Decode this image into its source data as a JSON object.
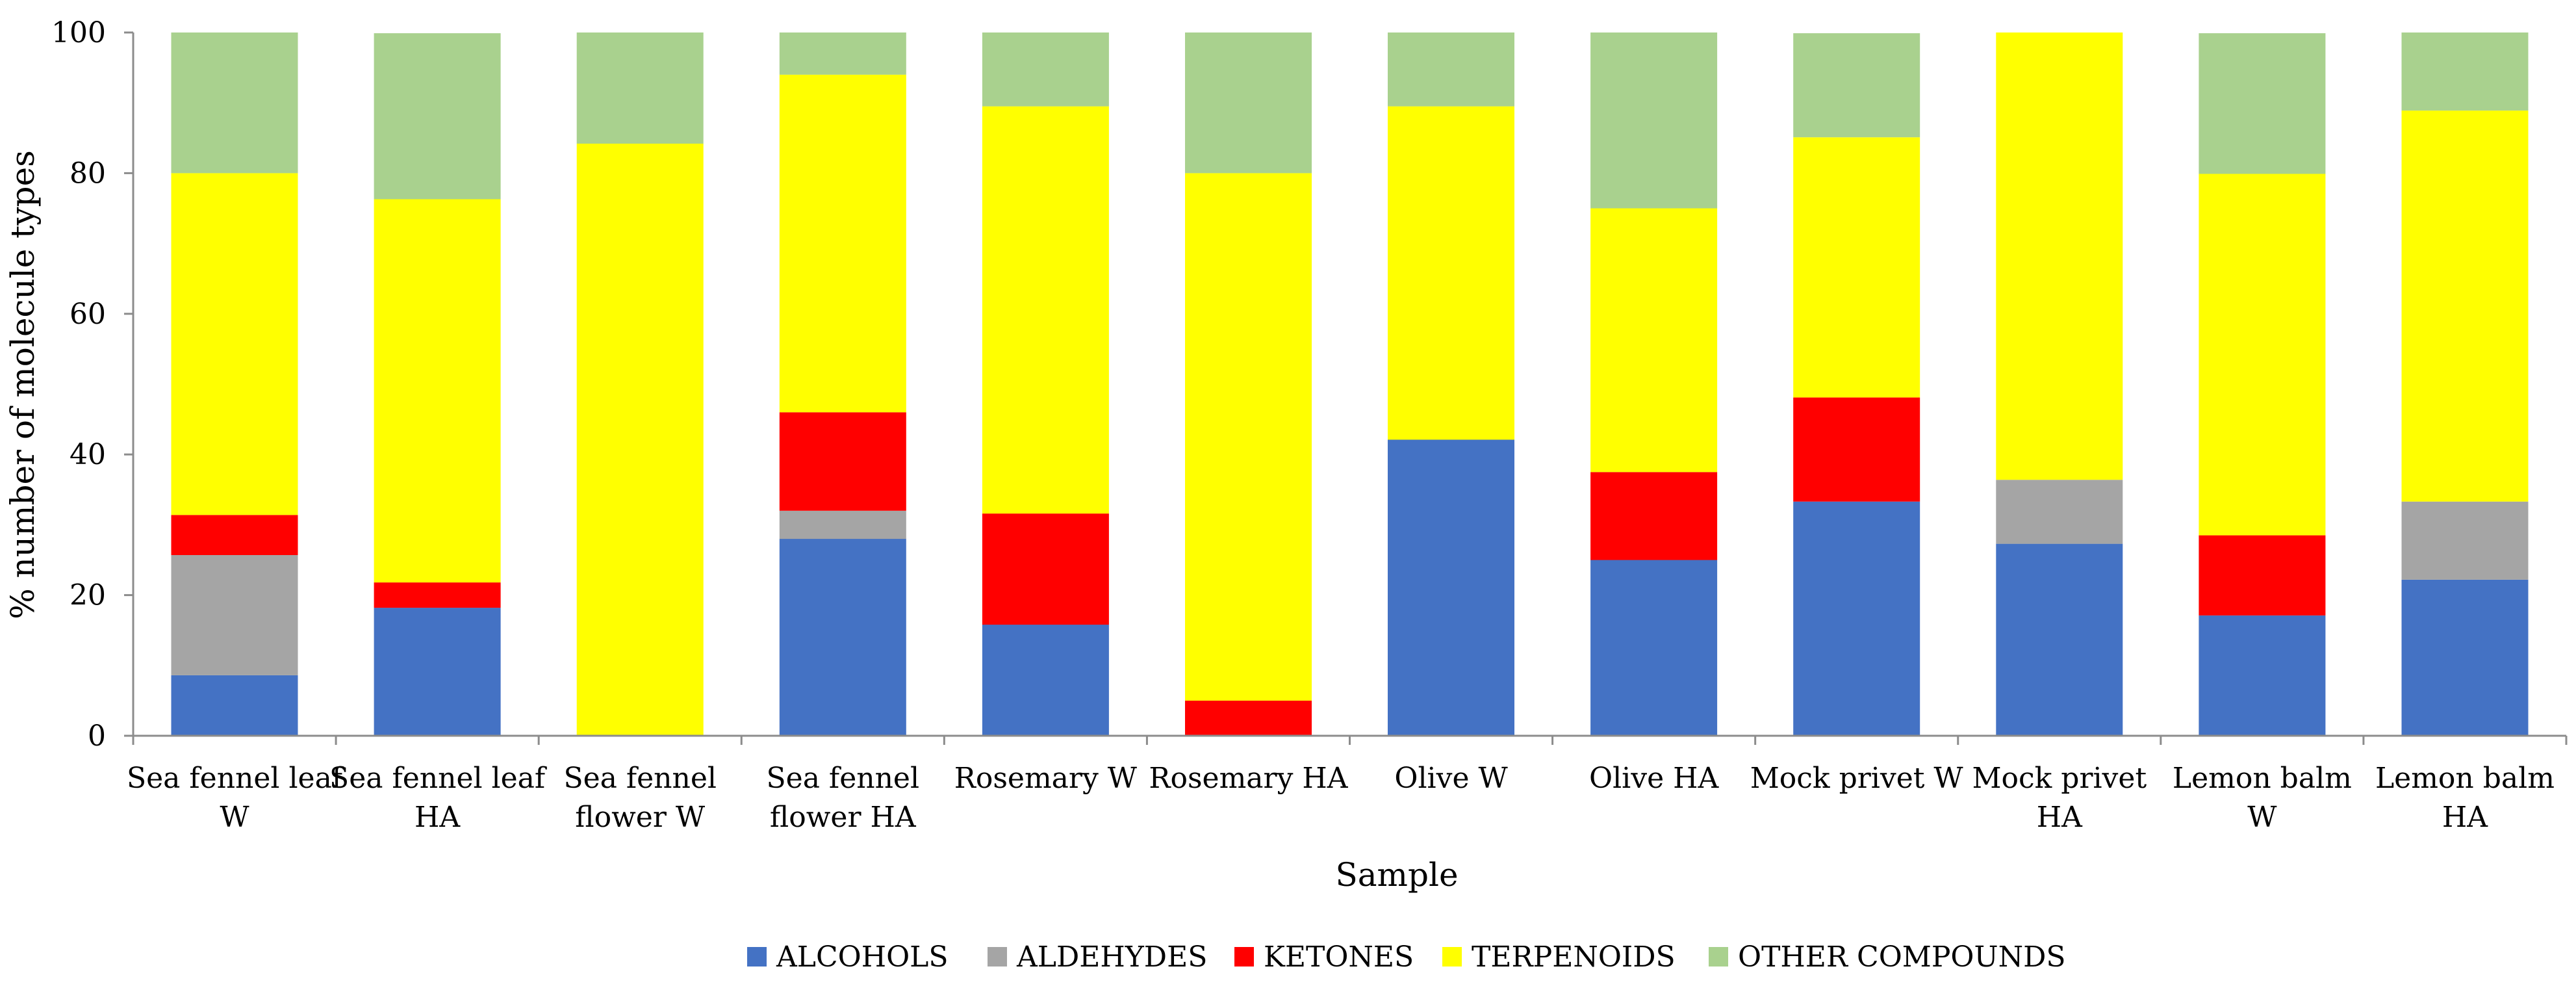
{
  "chart_data": {
    "type": "bar",
    "stacked": true,
    "title": "",
    "xlabel": "Sample",
    "ylabel": "% number of molecule types",
    "ylim": [
      0,
      100
    ],
    "yticks": [
      0,
      20,
      40,
      60,
      80,
      100
    ],
    "grid": false,
    "legend_position": "bottom",
    "categories": [
      [
        "Sea fennel leaf",
        "W"
      ],
      [
        "Sea fennel leaf",
        "HA"
      ],
      [
        "Sea fennel",
        "flower W"
      ],
      [
        "Sea fennel",
        "flower HA"
      ],
      [
        "Rosemary W"
      ],
      [
        "Rosemary HA"
      ],
      [
        "Olive W"
      ],
      [
        "Olive HA"
      ],
      [
        "Mock privet W"
      ],
      [
        "Mock privet",
        "HA"
      ],
      [
        "Lemon balm",
        "W"
      ],
      [
        "Lemon balm",
        "HA"
      ]
    ],
    "series": [
      {
        "name": "ALCOHOLS",
        "color": "#4472C4",
        "values": [
          8.6,
          18.2,
          0,
          28.0,
          15.8,
          0,
          42.1,
          25.0,
          33.3,
          27.3,
          17.1,
          22.2
        ]
      },
      {
        "name": "ALDEHYDES",
        "color": "#A5A5A5",
        "values": [
          17.1,
          0,
          0,
          4.0,
          0,
          0,
          0,
          0,
          0,
          9.1,
          0,
          11.1
        ]
      },
      {
        "name": "KETONES",
        "color": "#FF0000",
        "values": [
          5.7,
          3.6,
          0,
          14.0,
          15.8,
          5.0,
          0,
          12.5,
          14.8,
          0,
          11.4,
          0
        ]
      },
      {
        "name": "TERPENOIDS",
        "color": "#FFFF00",
        "values": [
          48.6,
          54.5,
          84.2,
          48.0,
          57.9,
          75.0,
          47.4,
          37.5,
          37.0,
          63.6,
          51.4,
          55.6
        ]
      },
      {
        "name": "OTHER COMPOUNDS",
        "color": "#A9D18E",
        "values": [
          20.0,
          23.6,
          15.8,
          6.0,
          10.5,
          20.0,
          10.5,
          25.0,
          14.8,
          0,
          20.0,
          11.1
        ]
      }
    ]
  }
}
